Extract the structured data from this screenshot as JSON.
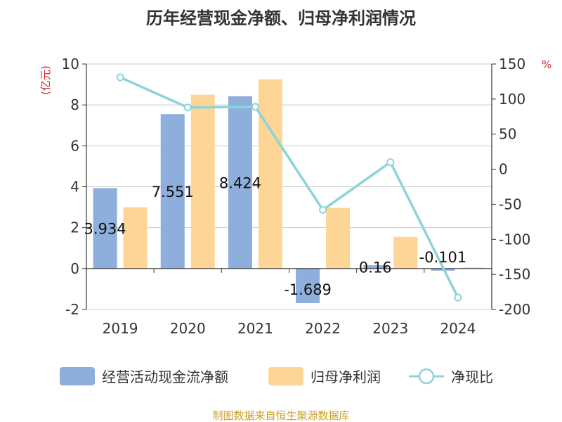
{
  "chart_data": {
    "type": "bar",
    "title": "历年经营现金净额、归母净利润情况",
    "categories": [
      "2019",
      "2020",
      "2021",
      "2022",
      "2023",
      "2024"
    ],
    "left_axis": {
      "unit": "(亿元)",
      "ylim": [
        -2,
        10
      ],
      "ticks": [
        "10",
        "8",
        "6",
        "4",
        "2",
        "0",
        "-2"
      ]
    },
    "right_axis": {
      "unit": "%",
      "ylim": [
        -200,
        150
      ],
      "ticks": [
        "150",
        "100",
        "50",
        "0",
        "-50",
        "-100",
        "-150",
        "-200"
      ]
    },
    "series": [
      {
        "name": "经营活动现金流净额",
        "kind": "bar",
        "axis": "left",
        "color": "#8EAEDB",
        "values": [
          3.934,
          7.551,
          8.424,
          -1.689,
          0.16,
          -0.101
        ],
        "labels": [
          "3.934",
          "7.551",
          "8.424",
          "-1.689",
          "0.16",
          "-0.101"
        ]
      },
      {
        "name": "归母净利润",
        "kind": "bar",
        "axis": "left",
        "color": "#FDD697",
        "values": [
          3.0,
          8.5,
          9.25,
          2.97,
          1.55,
          0.05
        ]
      },
      {
        "name": "净现比",
        "kind": "line",
        "axis": "right",
        "color": "#8ED3D9",
        "values": [
          131,
          88,
          89,
          -58,
          10,
          -183
        ]
      }
    ],
    "grid": true,
    "legend_position": "bottom"
  },
  "source_text": "制图数据来自恒生聚源数据库",
  "colors": {
    "title": "#333333",
    "unit": "#D62728",
    "axis": "#333333",
    "grid": "#CCCCCC",
    "source": "#C9A227"
  }
}
